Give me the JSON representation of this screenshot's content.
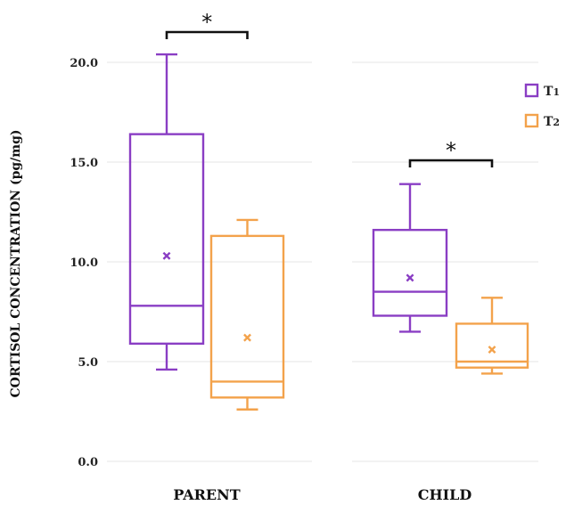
{
  "chart_data": {
    "type": "box",
    "ylabel": "CORTISOL CONCENTRATION (pg/mg)",
    "ylim": [
      0,
      21.5
    ],
    "yticks": [
      0,
      5,
      10,
      15,
      20
    ],
    "ytick_labels": [
      "0.0",
      "5.0",
      "10.0",
      "15.0",
      "20.0"
    ],
    "groups": [
      "PARENT",
      "CHILD"
    ],
    "legend": [
      {
        "name": "T1",
        "label_main": "T",
        "label_sub": "1",
        "color": "#8a3ec4"
      },
      {
        "name": "T2",
        "label_main": "T",
        "label_sub": "2",
        "color": "#f3a24b"
      }
    ],
    "boxes": [
      {
        "group": "PARENT",
        "series": "T1",
        "min": 4.6,
        "q1": 5.9,
        "median": 7.8,
        "q3": 16.4,
        "max": 20.4,
        "mean": 10.3
      },
      {
        "group": "PARENT",
        "series": "T2",
        "min": 2.6,
        "q1": 3.2,
        "median": 4.0,
        "q3": 11.3,
        "max": 12.1,
        "mean": 6.2
      },
      {
        "group": "CHILD",
        "series": "T1",
        "min": 6.5,
        "q1": 7.3,
        "median": 8.5,
        "q3": 11.6,
        "max": 13.9,
        "mean": 9.2
      },
      {
        "group": "CHILD",
        "series": "T2",
        "min": 4.4,
        "q1": 4.7,
        "median": 5.0,
        "q3": 6.9,
        "max": 8.2,
        "mean": 5.6
      }
    ],
    "significance": [
      {
        "group": "PARENT",
        "label": "*"
      },
      {
        "group": "CHILD",
        "label": "*"
      }
    ]
  }
}
